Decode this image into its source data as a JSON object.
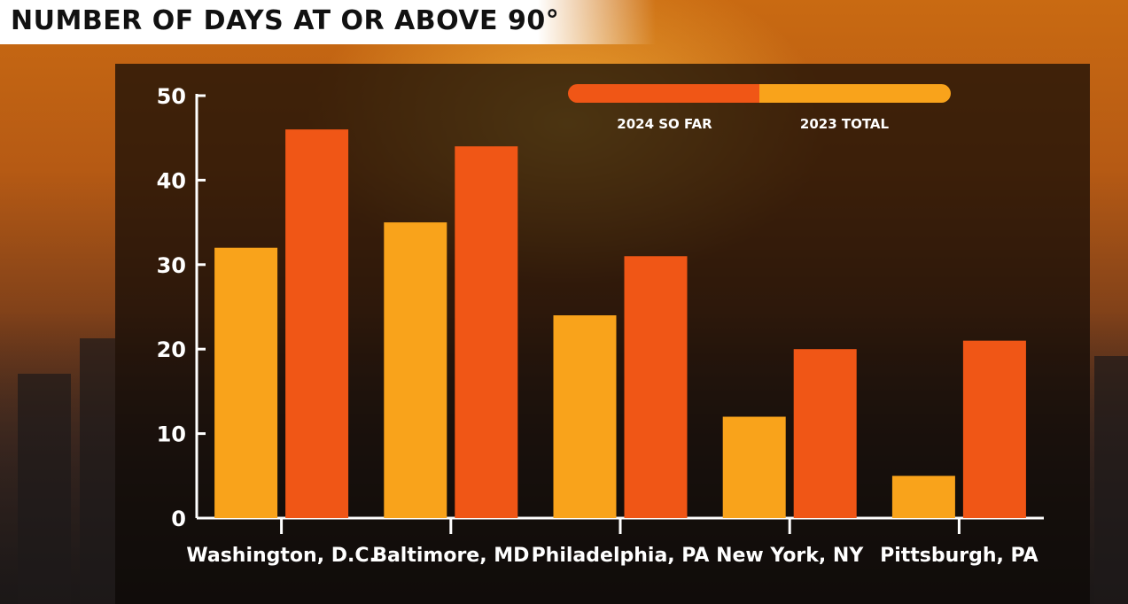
{
  "title": "NUMBER OF DAYS AT OR ABOVE 90°",
  "chart_data": {
    "type": "bar",
    "categories": [
      "Washington, D.C.",
      "Baltimore, MD",
      "Philadelphia, PA",
      "New York, NY",
      "Pittsburgh, PA"
    ],
    "series": [
      {
        "name": "2024 SO FAR",
        "color": "#f9a31b",
        "values": [
          32,
          35,
          24,
          12,
          5
        ]
      },
      {
        "name": "2023 TOTAL",
        "color": "#f05616",
        "values": [
          46,
          44,
          31,
          20,
          21
        ]
      }
    ],
    "yticks": [
      0,
      10,
      20,
      30,
      40,
      50
    ],
    "ylim": [
      0,
      50
    ],
    "grid": false,
    "legend_position": "top-right"
  }
}
